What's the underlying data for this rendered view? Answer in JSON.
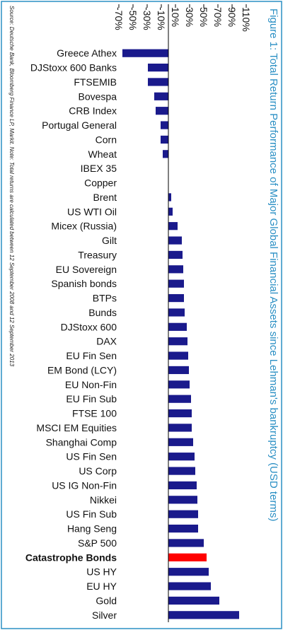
{
  "title": "Figure 1: Total Return Performance of Major Global Financial Assets since Lehman's bankruptcy (USD terms)",
  "source": "Source: Deutsche Bank, Bloomberg Finance LP, Markit. Note: Total returns are calculated between 12 September 2008 and 12 September 2013",
  "colors": {
    "bar": "#1a1a8c",
    "highlight_bar": "#ff0000",
    "highlight_label": "#e60000",
    "title": "#2a8fc4",
    "frame": "#2a8fc4",
    "axis": "#000000"
  },
  "chart_data": {
    "type": "bar",
    "orientation": "horizontal",
    "categories": [
      "Greece Athex",
      "DJStoxx 600 Banks",
      "FTSEMIB",
      "Bovespa",
      "CRB Index",
      "Portugal General",
      "Corn",
      "Wheat",
      "IBEX 35",
      "Copper",
      "Brent",
      "US WTI Oil",
      "Micex (Russia)",
      "Gilt",
      "Treasury",
      "EU Sovereign",
      "Spanish bonds",
      "BTPs",
      "Bunds",
      "DJStoxx 600",
      "DAX",
      "EU Fin Sen",
      "EM Bond (LCY)",
      "EU Non-Fin",
      "EU Fin Sub",
      "FTSE 100",
      "MSCI EM Equities",
      "Shanghai Comp",
      "US Fin Sen",
      "US Corp",
      "US IG Non-Fin",
      "Nikkei",
      "US Fin Sub",
      "Hang Seng",
      "S&P 500",
      "Catastrophe Bonds",
      "US HY",
      "EU HY",
      "Gold",
      "Silver"
    ],
    "values": [
      -65,
      -29,
      -29,
      -20,
      -18,
      -11,
      -11,
      -8,
      0,
      0,
      4,
      6,
      13,
      19,
      20,
      21,
      22,
      22,
      23,
      26,
      27,
      28,
      29,
      30,
      32,
      33,
      33,
      35,
      37,
      38,
      40,
      41,
      42,
      42,
      50,
      54,
      57,
      60,
      72,
      100
    ],
    "highlight": [
      "Catastrophe Bonds"
    ],
    "tick_labels": [
      "-70%",
      "-50%",
      "-30%",
      "-10%",
      "10%",
      "30%",
      "50%",
      "70%",
      "90%",
      "110%"
    ],
    "ticks": [
      -70,
      -50,
      -30,
      -10,
      10,
      30,
      50,
      70,
      90,
      110
    ],
    "xlim": [
      -70,
      110
    ],
    "grid": false
  }
}
